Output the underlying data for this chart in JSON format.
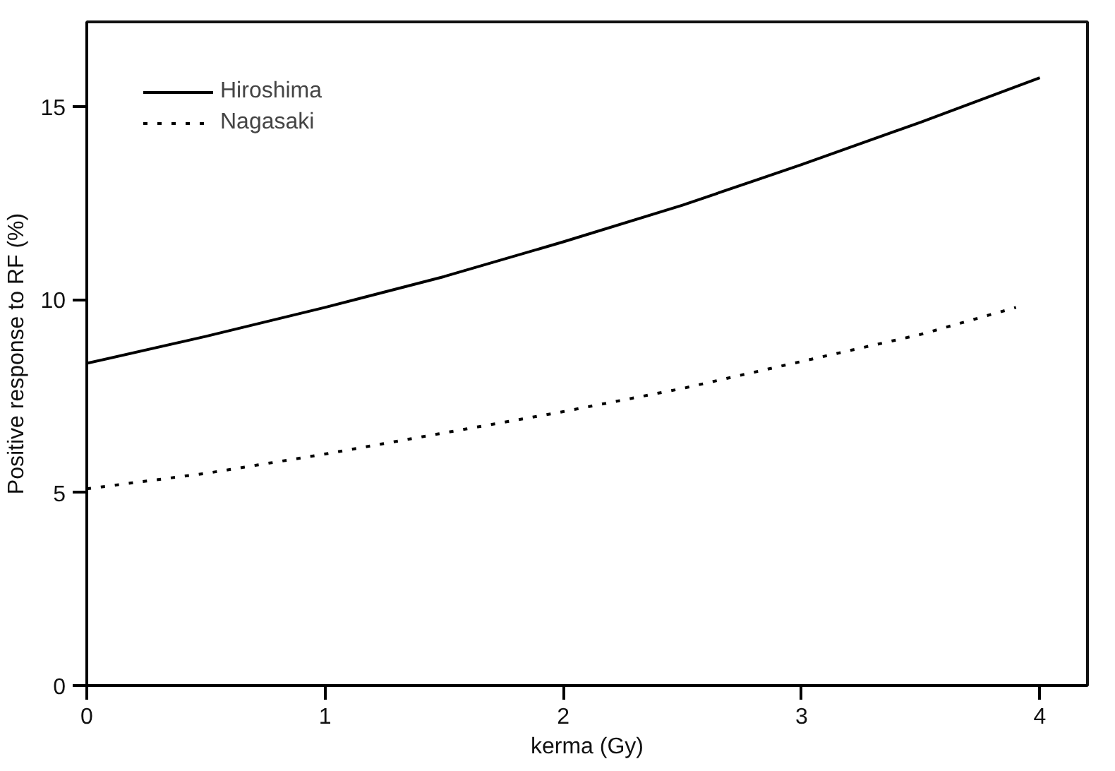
{
  "chart_data": {
    "type": "line",
    "xlabel": "kerma (Gy)",
    "ylabel": "Positive response to RF (%)",
    "xlim": [
      0,
      4.2
    ],
    "ylim": [
      0,
      17.2
    ],
    "xticks": [
      0,
      1,
      2,
      3,
      4
    ],
    "yticks": [
      0,
      5,
      10,
      15
    ],
    "grid": false,
    "legend": "top left",
    "series": [
      {
        "name": "Hiroshima",
        "color": "#000000",
        "line_style": "solid",
        "x": [
          0,
          0.5,
          1,
          1.5,
          2,
          2.5,
          3,
          3.5,
          4
        ],
        "values": [
          8.35,
          9.05,
          9.8,
          10.6,
          11.5,
          12.45,
          13.5,
          14.6,
          15.75
        ]
      },
      {
        "name": "Nagasaki",
        "color": "#000000",
        "line_style": "dotted",
        "x": [
          0,
          0.5,
          1,
          1.5,
          2,
          2.5,
          3,
          3.5,
          3.9
        ],
        "values": [
          5.1,
          5.5,
          6.0,
          6.55,
          7.1,
          7.7,
          8.4,
          9.1,
          9.8
        ]
      }
    ]
  }
}
